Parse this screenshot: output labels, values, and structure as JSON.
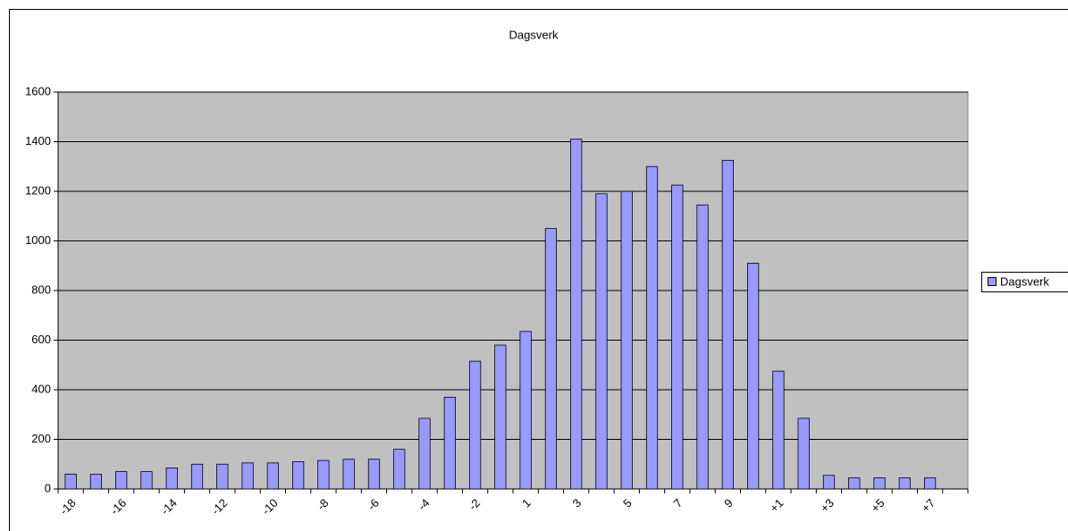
{
  "chart_data": {
    "type": "bar",
    "title": "Dagsverk",
    "categories": [
      "-18",
      null,
      "-16",
      null,
      "-14",
      null,
      "-12",
      null,
      "-10",
      null,
      "-8",
      null,
      "-6",
      null,
      "-4",
      null,
      "-2",
      null,
      "1",
      null,
      "3",
      null,
      "5",
      null,
      "7",
      null,
      "9",
      null,
      "+1",
      null,
      "+3",
      null,
      "+5",
      null,
      "+7",
      null
    ],
    "series": [
      {
        "name": "Dagsverk",
        "color": "#9999ff",
        "values": [
          60,
          60,
          70,
          70,
          85,
          100,
          100,
          105,
          105,
          110,
          115,
          120,
          120,
          160,
          285,
          370,
          515,
          580,
          635,
          1050,
          1410,
          1190,
          1200,
          1300,
          1225,
          1145,
          1325,
          910,
          475,
          285,
          55,
          45,
          45,
          45,
          45,
          null
        ]
      }
    ],
    "ylim": [
      0,
      1600
    ],
    "yticks": [
      0,
      200,
      400,
      600,
      800,
      1000,
      1200,
      1400,
      1600
    ],
    "grid": true,
    "legend": "right",
    "plot_background": "#c0c0c0"
  }
}
